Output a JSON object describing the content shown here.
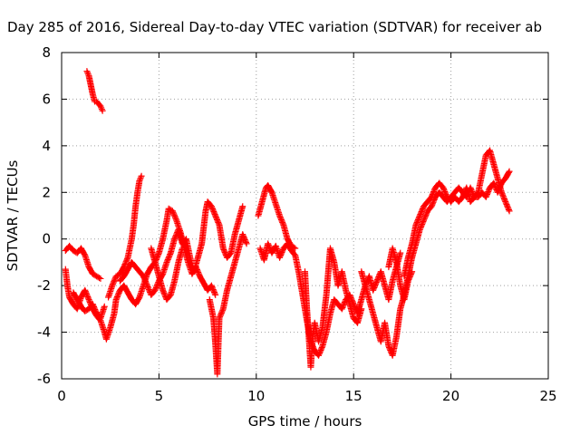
{
  "chart_data": {
    "type": "scatter",
    "title": "Day 285 of 2016, Sidereal Day-to-day VTEC variation (SDTVAR) for receiver ab",
    "xlabel": "GPS time / hours",
    "ylabel": "SDTVAR / TECUs",
    "xlim": [
      0,
      25
    ],
    "ylim": [
      -6,
      8
    ],
    "xticks": [
      "0",
      "5",
      "10",
      "15",
      "20",
      "25"
    ],
    "yticks": [
      "-6",
      "-4",
      "-2",
      "0",
      "2",
      "4",
      "6",
      "8"
    ],
    "grid": true,
    "marker": "plus",
    "color": "#ff0000",
    "series": [
      {
        "values": [
          [
            1.3,
            7.2
          ],
          [
            1.4,
            7.0
          ],
          [
            1.5,
            6.6
          ],
          [
            1.6,
            6.2
          ],
          [
            1.7,
            5.9
          ],
          [
            1.8,
            5.9
          ],
          [
            1.9,
            5.8
          ],
          [
            2.0,
            5.7
          ],
          [
            2.1,
            5.5
          ]
        ]
      },
      {
        "values": [
          [
            0.2,
            -0.5
          ],
          [
            0.4,
            -0.3
          ],
          [
            0.6,
            -0.5
          ],
          [
            0.8,
            -0.6
          ],
          [
            1.0,
            -0.4
          ],
          [
            1.2,
            -0.7
          ],
          [
            1.4,
            -1.2
          ],
          [
            1.6,
            -1.5
          ],
          [
            1.8,
            -1.6
          ],
          [
            2.0,
            -1.7
          ]
        ]
      },
      {
        "values": [
          [
            0.2,
            -1.3
          ],
          [
            0.3,
            -2.0
          ],
          [
            0.4,
            -2.5
          ],
          [
            0.6,
            -2.8
          ],
          [
            0.8,
            -3.0
          ],
          [
            1.0,
            -2.5
          ],
          [
            1.2,
            -2.2
          ],
          [
            1.4,
            -2.6
          ],
          [
            1.6,
            -3.0
          ],
          [
            1.8,
            -3.3
          ],
          [
            2.0,
            -3.5
          ],
          [
            2.2,
            -4.0
          ],
          [
            2.3,
            -4.3
          ],
          [
            2.5,
            -3.8
          ],
          [
            2.7,
            -3.2
          ],
          [
            2.8,
            -2.6
          ],
          [
            3.0,
            -2.2
          ],
          [
            3.2,
            -2.0
          ],
          [
            3.4,
            -2.3
          ],
          [
            3.6,
            -2.6
          ],
          [
            3.8,
            -2.8
          ],
          [
            4.0,
            -2.5
          ],
          [
            4.2,
            -2.0
          ],
          [
            4.4,
            -1.5
          ],
          [
            4.6,
            -1.2
          ],
          [
            4.8,
            -1.0
          ],
          [
            5.0,
            -0.6
          ],
          [
            5.2,
            0.0
          ],
          [
            5.4,
            0.8
          ],
          [
            5.5,
            1.3
          ],
          [
            5.7,
            1.2
          ],
          [
            5.9,
            0.8
          ],
          [
            6.1,
            0.3
          ],
          [
            6.3,
            -0.4
          ],
          [
            6.5,
            -1.0
          ],
          [
            6.7,
            -1.5
          ],
          [
            6.9,
            -1.2
          ],
          [
            7.1,
            -1.6
          ],
          [
            7.3,
            -1.9
          ],
          [
            7.5,
            -2.2
          ],
          [
            7.7,
            -2.0
          ],
          [
            7.9,
            -2.4
          ]
        ]
      },
      {
        "values": [
          [
            2.4,
            -2.5
          ],
          [
            2.6,
            -2.0
          ],
          [
            2.8,
            -1.6
          ],
          [
            3.0,
            -1.5
          ],
          [
            3.2,
            -1.2
          ],
          [
            3.4,
            -0.8
          ],
          [
            3.6,
            0.0
          ],
          [
            3.7,
            0.6
          ],
          [
            3.8,
            1.4
          ],
          [
            3.9,
            2.0
          ],
          [
            4.0,
            2.5
          ],
          [
            4.1,
            2.7
          ]
        ]
      },
      {
        "values": [
          [
            0.6,
            -2.3
          ],
          [
            0.8,
            -2.6
          ],
          [
            1.0,
            -2.9
          ],
          [
            1.2,
            -3.1
          ],
          [
            1.4,
            -3.0
          ],
          [
            1.6,
            -2.8
          ],
          [
            1.8,
            -3.2
          ],
          [
            2.0,
            -3.4
          ],
          [
            2.2,
            -2.9
          ]
        ]
      },
      {
        "values": [
          [
            3.0,
            -1.8
          ],
          [
            3.2,
            -1.6
          ],
          [
            3.4,
            -1.3
          ],
          [
            3.6,
            -1.0
          ],
          [
            3.8,
            -1.2
          ],
          [
            4.0,
            -1.4
          ],
          [
            4.2,
            -1.6
          ],
          [
            4.4,
            -2.0
          ],
          [
            4.6,
            -2.4
          ],
          [
            4.8,
            -2.2
          ],
          [
            5.0,
            -1.8
          ],
          [
            5.2,
            -1.5
          ],
          [
            5.4,
            -1.0
          ],
          [
            5.6,
            -0.6
          ],
          [
            5.8,
            0.0
          ],
          [
            6.0,
            0.4
          ],
          [
            6.2,
            -0.2
          ],
          [
            6.4,
            0.0
          ],
          [
            6.6,
            -0.8
          ],
          [
            6.8,
            -1.4
          ],
          [
            7.0,
            -0.8
          ],
          [
            7.2,
            -0.2
          ],
          [
            7.4,
            1.2
          ],
          [
            7.5,
            1.6
          ],
          [
            7.7,
            1.4
          ],
          [
            7.9,
            1.0
          ],
          [
            8.1,
            0.6
          ],
          [
            8.3,
            -0.4
          ],
          [
            8.5,
            -0.8
          ],
          [
            8.7,
            -0.6
          ],
          [
            8.9,
            0.2
          ],
          [
            9.1,
            0.8
          ],
          [
            9.3,
            1.4
          ]
        ]
      },
      {
        "values": [
          [
            4.6,
            -0.4
          ],
          [
            4.8,
            -1.0
          ],
          [
            5.0,
            -1.6
          ],
          [
            5.2,
            -2.2
          ],
          [
            5.4,
            -2.6
          ],
          [
            5.6,
            -2.4
          ],
          [
            5.8,
            -1.8
          ],
          [
            6.0,
            -1.0
          ],
          [
            6.2,
            -0.4
          ]
        ]
      },
      {
        "values": [
          [
            7.6,
            -2.6
          ],
          [
            7.8,
            -3.4
          ],
          [
            7.9,
            -4.5
          ],
          [
            8.0,
            -5.8
          ],
          [
            8.1,
            -3.4
          ],
          [
            8.3,
            -3.0
          ],
          [
            8.5,
            -2.2
          ],
          [
            8.7,
            -1.6
          ],
          [
            8.9,
            -1.0
          ],
          [
            9.1,
            -0.4
          ],
          [
            9.3,
            0.2
          ],
          [
            9.5,
            -0.2
          ]
        ]
      },
      {
        "values": [
          [
            10.1,
            1.0
          ],
          [
            10.3,
            1.6
          ],
          [
            10.5,
            2.2
          ],
          [
            10.6,
            2.3
          ],
          [
            10.8,
            2.0
          ],
          [
            11.0,
            1.5
          ],
          [
            11.2,
            1.0
          ],
          [
            11.4,
            0.6
          ],
          [
            11.6,
            0.0
          ],
          [
            11.8,
            -0.3
          ],
          [
            12.0,
            -0.4
          ]
        ]
      },
      {
        "values": [
          [
            10.2,
            -0.4
          ],
          [
            10.4,
            -0.9
          ],
          [
            10.6,
            -0.2
          ],
          [
            10.8,
            -0.6
          ],
          [
            11.0,
            -0.3
          ],
          [
            11.2,
            -0.8
          ],
          [
            11.4,
            -0.4
          ],
          [
            11.6,
            -0.2
          ],
          [
            11.8,
            -0.5
          ],
          [
            12.0,
            -0.7
          ],
          [
            12.2,
            -1.5
          ],
          [
            12.4,
            -2.5
          ],
          [
            12.6,
            -3.5
          ],
          [
            12.8,
            -4.4
          ],
          [
            13.0,
            -4.8
          ],
          [
            13.2,
            -5.0
          ],
          [
            13.4,
            -4.6
          ],
          [
            13.6,
            -4.0
          ],
          [
            13.8,
            -3.2
          ],
          [
            14.0,
            -2.6
          ],
          [
            14.2,
            -2.8
          ],
          [
            14.4,
            -3.0
          ],
          [
            14.6,
            -2.6
          ],
          [
            14.8,
            -2.4
          ],
          [
            15.0,
            -2.8
          ],
          [
            15.2,
            -3.2
          ],
          [
            15.4,
            -2.6
          ],
          [
            15.6,
            -2.0
          ],
          [
            15.8,
            -1.6
          ],
          [
            16.0,
            -2.2
          ],
          [
            16.2,
            -1.8
          ],
          [
            16.4,
            -1.4
          ],
          [
            16.6,
            -2.0
          ],
          [
            16.8,
            -2.6
          ],
          [
            17.0,
            -1.8
          ],
          [
            17.2,
            -1.2
          ],
          [
            17.4,
            -0.6
          ]
        ]
      },
      {
        "values": [
          [
            12.5,
            -1.4
          ],
          [
            12.6,
            -3.0
          ],
          [
            12.7,
            -4.2
          ],
          [
            12.8,
            -5.5
          ],
          [
            12.9,
            -4.2
          ],
          [
            13.0,
            -3.6
          ],
          [
            13.2,
            -4.4
          ],
          [
            13.4,
            -3.8
          ],
          [
            13.6,
            -2.4
          ],
          [
            13.8,
            -0.4
          ],
          [
            14.0,
            -1.0
          ],
          [
            14.2,
            -2.0
          ],
          [
            14.4,
            -1.4
          ],
          [
            14.6,
            -2.2
          ],
          [
            14.8,
            -2.8
          ],
          [
            15.0,
            -3.4
          ],
          [
            15.2,
            -3.6
          ],
          [
            15.4,
            -3.0
          ]
        ]
      },
      {
        "values": [
          [
            15.4,
            -1.4
          ],
          [
            15.6,
            -2.0
          ],
          [
            15.8,
            -2.6
          ],
          [
            16.0,
            -3.2
          ],
          [
            16.2,
            -3.8
          ],
          [
            16.4,
            -4.4
          ],
          [
            16.6,
            -3.6
          ],
          [
            16.8,
            -4.6
          ],
          [
            17.0,
            -5.0
          ],
          [
            17.2,
            -4.2
          ],
          [
            17.4,
            -3.0
          ],
          [
            17.6,
            -2.4
          ],
          [
            17.8,
            -1.6
          ],
          [
            18.0,
            -0.8
          ],
          [
            18.2,
            -0.2
          ],
          [
            18.4,
            0.4
          ],
          [
            18.6,
            0.8
          ],
          [
            18.8,
            1.2
          ],
          [
            19.0,
            1.4
          ],
          [
            19.2,
            1.8
          ],
          [
            19.4,
            2.0
          ],
          [
            19.6,
            1.8
          ],
          [
            19.8,
            1.6
          ],
          [
            20.0,
            1.8
          ],
          [
            20.2,
            2.0
          ],
          [
            20.4,
            2.2
          ],
          [
            20.6,
            2.0
          ],
          [
            20.8,
            1.8
          ],
          [
            21.0,
            2.2
          ],
          [
            21.2,
            1.8
          ],
          [
            21.4,
            2.0
          ],
          [
            21.6,
            2.8
          ],
          [
            21.8,
            3.6
          ],
          [
            22.0,
            3.8
          ],
          [
            22.2,
            3.2
          ],
          [
            22.4,
            2.6
          ],
          [
            22.6,
            2.0
          ],
          [
            22.8,
            1.6
          ],
          [
            23.0,
            1.2
          ]
        ]
      },
      {
        "values": [
          [
            17.6,
            -1.6
          ],
          [
            17.8,
            -0.8
          ],
          [
            18.0,
            -0.2
          ],
          [
            18.2,
            0.6
          ],
          [
            18.4,
            1.0
          ],
          [
            18.6,
            1.4
          ],
          [
            18.8,
            1.6
          ],
          [
            19.0,
            1.8
          ],
          [
            19.2,
            2.2
          ],
          [
            19.4,
            2.4
          ],
          [
            19.6,
            2.2
          ],
          [
            19.8,
            1.8
          ],
          [
            20.0,
            1.6
          ],
          [
            20.2,
            1.8
          ],
          [
            20.4,
            1.6
          ],
          [
            20.6,
            1.8
          ],
          [
            20.8,
            2.2
          ],
          [
            21.0,
            1.6
          ],
          [
            21.2,
            1.8
          ],
          [
            21.4,
            1.8
          ],
          [
            21.6,
            2.0
          ],
          [
            21.8,
            1.8
          ],
          [
            22.0,
            2.2
          ],
          [
            22.2,
            2.4
          ],
          [
            22.4,
            2.0
          ],
          [
            22.6,
            2.4
          ],
          [
            22.8,
            2.6
          ],
          [
            23.0,
            2.9
          ]
        ]
      },
      {
        "values": [
          [
            16.8,
            -1.2
          ],
          [
            17.0,
            -0.4
          ],
          [
            17.2,
            -1.0
          ],
          [
            17.4,
            -2.0
          ],
          [
            17.6,
            -2.6
          ],
          [
            17.8,
            -1.8
          ],
          [
            18.0,
            -1.4
          ]
        ]
      }
    ]
  }
}
